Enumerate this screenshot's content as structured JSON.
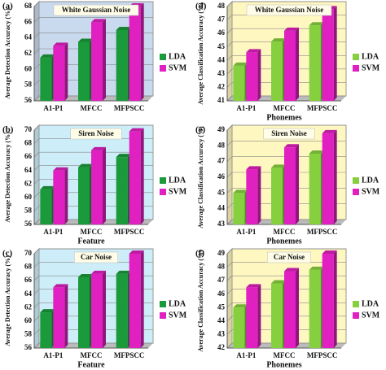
{
  "chart_data": [
    {
      "type": "bar",
      "label": "(a)",
      "title": "White Gaussian Noise",
      "ylabel": "Average Detection Accuracy (%)",
      "categories": [
        "A1-P1",
        "MFCC",
        "MFPSCC"
      ],
      "series": [
        {
          "name": "LDA",
          "color": "#1a9a3a",
          "values": [
            61.5,
            63.5,
            65
          ]
        },
        {
          "name": "SVM",
          "color": "#e020c0",
          "values": [
            63,
            66,
            68
          ]
        }
      ],
      "ylim": [
        56,
        68
      ],
      "yticks": [
        56,
        58,
        60,
        62,
        64,
        66,
        68
      ],
      "background": "#c9d9ee"
    },
    {
      "type": "bar",
      "label": "(b)",
      "title": "Siren Noise",
      "ylabel": "Average Detection Accuracy (%)",
      "xlabel": "Feature",
      "categories": [
        "A1-P1",
        "MFCC",
        "MFPSCC"
      ],
      "series": [
        {
          "name": "LDA",
          "color": "#1a9a3a",
          "values": [
            61.2,
            64.5,
            66
          ]
        },
        {
          "name": "SVM",
          "color": "#e020c0",
          "values": [
            64,
            67,
            69.8
          ]
        }
      ],
      "ylim": [
        56,
        70
      ],
      "yticks": [
        56,
        58,
        60,
        62,
        64,
        66,
        68,
        70
      ],
      "background": "#cdeef8"
    },
    {
      "type": "bar",
      "label": "(c)",
      "title": "Car Noise",
      "ylabel": "Average Detection Accuracy (%)",
      "xlabel": "Feature",
      "categories": [
        "A1-P1",
        "MFCC",
        "MFPSCC"
      ],
      "series": [
        {
          "name": "LDA",
          "color": "#1a9a3a",
          "values": [
            61.3,
            66.5,
            67
          ]
        },
        {
          "name": "SVM",
          "color": "#e020c0",
          "values": [
            65,
            67,
            70
          ]
        }
      ],
      "ylim": [
        56,
        70
      ],
      "yticks": [
        56,
        58,
        60,
        62,
        64,
        66,
        68,
        70
      ],
      "background": "#cdeef8"
    },
    {
      "type": "bar",
      "label": "(d)",
      "title": "White Gaussian Noise",
      "ylabel": "Average Classification Accuracy (%)",
      "xlabel": "Phonemes",
      "categories": [
        "A1-P1",
        "MFCC",
        "MFPSCC"
      ],
      "series": [
        {
          "name": "LDA",
          "color": "#86d040",
          "values": [
            43.6,
            45.4,
            46.6
          ]
        },
        {
          "name": "SVM",
          "color": "#e020c0",
          "values": [
            44.6,
            46.2,
            47.8
          ]
        }
      ],
      "ylim": [
        41,
        48
      ],
      "yticks": [
        41,
        42,
        43,
        44,
        45,
        46,
        47,
        48
      ],
      "background": "#fff7c0"
    },
    {
      "type": "bar",
      "label": "(e)",
      "title": "Siren Noise",
      "ylabel": "Average Classification Accuracy (%)",
      "xlabel": "Phonemes",
      "categories": [
        "A1-P1",
        "MFCC",
        "MFPSCC"
      ],
      "series": [
        {
          "name": "LDA",
          "color": "#86d040",
          "values": [
            45,
            46.6,
            47.5
          ]
        },
        {
          "name": "SVM",
          "color": "#e020c0",
          "values": [
            46.5,
            47.9,
            48.8
          ]
        }
      ],
      "ylim": [
        43,
        49
      ],
      "yticks": [
        43,
        44,
        45,
        46,
        47,
        48,
        49
      ],
      "background": "#fff7c0"
    },
    {
      "type": "bar",
      "label": "(f)",
      "title": "Car Noise",
      "ylabel": "Average Classification Accuracy (%)",
      "xlabel": "Phonemes",
      "categories": [
        "A1-P1",
        "MFCC",
        "MFPSCC"
      ],
      "series": [
        {
          "name": "LDA",
          "color": "#86d040",
          "values": [
            45,
            46.8,
            47.8
          ]
        },
        {
          "name": "SVM",
          "color": "#e020c0",
          "values": [
            46.5,
            47.7,
            49
          ]
        }
      ],
      "ylim": [
        42,
        49
      ],
      "yticks": [
        42,
        43,
        44,
        45,
        46,
        47,
        48,
        49
      ],
      "background": "#fff7c0"
    }
  ]
}
